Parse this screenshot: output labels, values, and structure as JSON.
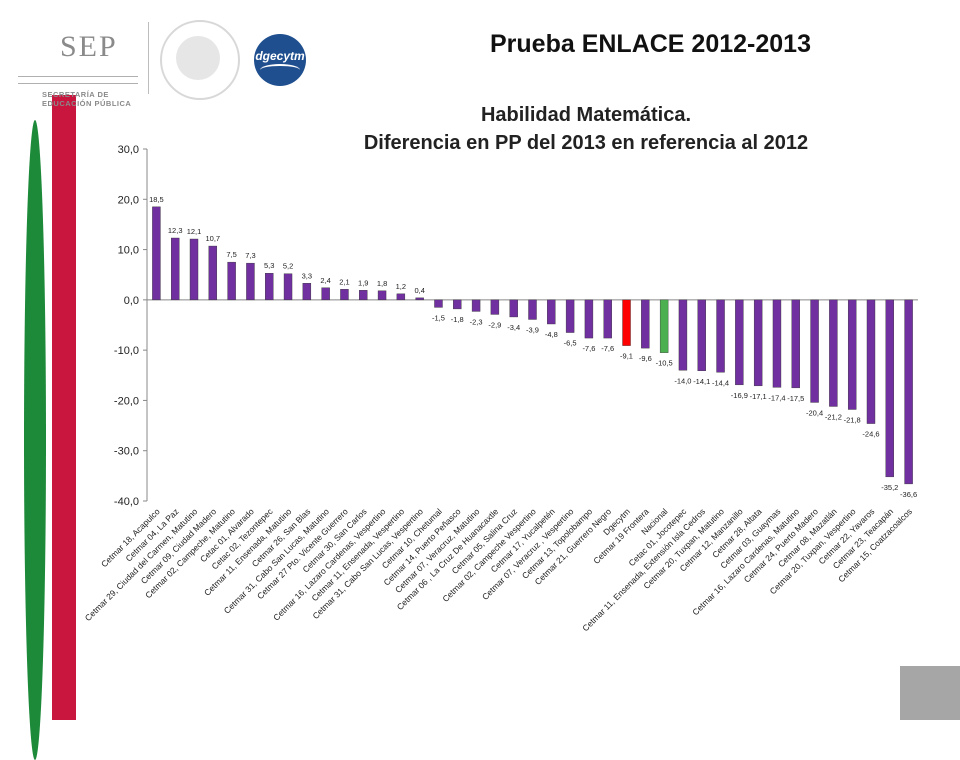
{
  "header": {
    "title": "Prueba ENLACE 2012-2013",
    "logo_sep": "SEP",
    "logo_sep_line1": "SECRETARÍA DE",
    "logo_sep_line2": "EDUCACIÓN PÚBLICA",
    "logo_dgecytm": "dgecytm"
  },
  "chart_data": {
    "type": "bar",
    "title": "Habilidad Matemática.",
    "subtitle": "Diferencia en PP del 2013 en referencia al 2012",
    "xlabel": "",
    "ylabel": "",
    "ylim": [
      -40,
      30
    ],
    "yticks": [
      "30,0",
      "20,0",
      "10,0",
      "0,0",
      "-10,0",
      "-20,0",
      "-30,0",
      "-40,0"
    ],
    "grid": false,
    "legend": "none",
    "colors": {
      "default": "#7030a0",
      "Dgecytm": "#ff0000",
      "Nacional": "#4cb050"
    },
    "categories": [
      "Cetmar 18, Acapulco",
      "Cetmar 04, La Paz",
      "Cetmar 29, Ciudad del Carmen, Matutino",
      "Cetmar 09, Ciudad Madero",
      "Cetmar 02, Campeche, Matutino",
      "Cetac 01, Alvarado",
      "Cetac 02, Tezontepec",
      "Cetmar 11, Ensenada, Matutino",
      "Cetmar 26, San Blas",
      "Cetmar 31, Cabo San Lucas, Matutino",
      "Cetmar 27 Pto. Vicente Guerrero",
      "Cetmar 30, San Carlos",
      "Cetmar 16, Lazaro Cardenas, Vespertino",
      "Cetmar 11, Ensenada, Vespertino",
      "Cetmar 31, Cabo San Lucas, Vespertino",
      "Cetmar 10, Chetumal",
      "Cetmar 14, Puerto Peñasco",
      "Cetmar 07, Veracruz, Matutino",
      "Cetmar 06 , La Cruz De Huanacaxtle",
      "Cetmar 05, Salina Cruz",
      "Cetmar 02, Campeche Vespertino",
      "Cetmar 17, Yucalpetén",
      "Cetmar 07, Veracruz , Vespertino",
      "Cetmar 13, Topolobampo",
      "Cetmar 21, Guerrero Negro",
      "Dgecytm",
      "Cetmar 19 Frontera",
      "Nacional",
      "Cetac 01, Jocotepec",
      "Cetmar 11, Ensenada, Extensión Isla Cedros",
      "Cetmar 20, Tuxpan, Matutino",
      "Cetmar 12, Manzanillo",
      "Cetmar 28, Altata",
      "Cetmar 03, Guaymas",
      "Cetmar 16, Lazaro Cardenas, Matutino",
      "Cetmar 24, Puerto Madero",
      "Cetmar 08, Mazatlán",
      "Cetmar 20, Tuxpan, Vespertino",
      "Cetmar 22, Yavaros",
      "Cetmar 23, Teacapán",
      "Cetmar 15, Coatzacoalcos"
    ],
    "values": [
      18.5,
      12.3,
      12.1,
      10.7,
      7.5,
      7.3,
      5.3,
      5.2,
      3.3,
      2.4,
      2.1,
      1.9,
      1.8,
      1.2,
      0.4,
      -1.5,
      -1.8,
      -2.3,
      -2.9,
      -3.4,
      -3.9,
      -4.8,
      -6.5,
      -7.6,
      -7.6,
      -9.1,
      -9.6,
      -10.5,
      -14.0,
      -14.1,
      -14.4,
      -16.9,
      -17.1,
      -17.4,
      -17.5,
      -20.4,
      -21.2,
      -21.8,
      -24.6,
      -35.2,
      -36.6
    ],
    "value_labels": [
      "18,5",
      "12,3",
      "12,1",
      "10,7",
      "7,5",
      "7,3",
      "5,3",
      "5,2",
      "3,3",
      "2,4",
      "2,1",
      "1,9",
      "1,8",
      "1,2",
      "0,4",
      "-1,5",
      "-1,8",
      "-2,3",
      "-2,9",
      "-3,4",
      "-3,9",
      "-4,8",
      "-6,5",
      "-7,6",
      "-7,6",
      "-9,1",
      "-9,6",
      "-10,5",
      "-14,0",
      "-14,1",
      "-14,4",
      "-16,9",
      "-17,1",
      "-17,4",
      "-17,5",
      "-20,4",
      "-21,2",
      "-21,8",
      "-24,6",
      "-35,2",
      "-36,6"
    ]
  }
}
